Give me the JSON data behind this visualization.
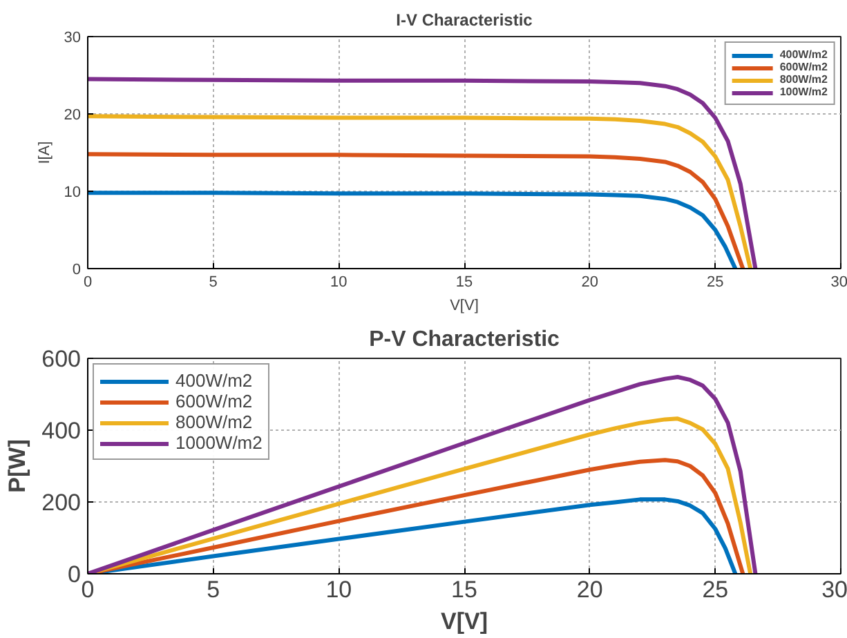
{
  "chart_data": [
    {
      "type": "line",
      "title": "I-V Characteristic",
      "xlabel": "V[V]",
      "ylabel": "I[A]",
      "xlim": [
        0,
        30
      ],
      "ylim": [
        0,
        30
      ],
      "xticks": [
        0,
        5,
        10,
        15,
        20,
        25,
        30
      ],
      "yticks": [
        0,
        10,
        20,
        30
      ],
      "grid": true,
      "legend": "top right",
      "line_style": "solid",
      "marker": "none",
      "series": [
        {
          "name": "400W/m2",
          "color": "#0072bd",
          "x": [
            0,
            5,
            10,
            15,
            20,
            21,
            22,
            23,
            23.5,
            24,
            24.5,
            25,
            25.4,
            25.8
          ],
          "values": [
            9.8,
            9.8,
            9.7,
            9.7,
            9.6,
            9.5,
            9.4,
            9.0,
            8.6,
            7.9,
            6.9,
            5.0,
            2.8,
            0
          ]
        },
        {
          "name": "600W/m2",
          "color": "#d95319",
          "x": [
            0,
            5,
            10,
            15,
            20,
            21,
            22,
            23,
            23.5,
            24,
            24.5,
            25,
            25.5,
            26.1
          ],
          "values": [
            14.8,
            14.7,
            14.7,
            14.6,
            14.5,
            14.4,
            14.2,
            13.8,
            13.3,
            12.5,
            11.2,
            9.0,
            5.5,
            0
          ]
        },
        {
          "name": "800W/m2",
          "color": "#edb120",
          "x": [
            0,
            5,
            10,
            15,
            20,
            21,
            22,
            23,
            23.5,
            24,
            24.5,
            25,
            25.5,
            26,
            26.4
          ],
          "values": [
            19.7,
            19.6,
            19.5,
            19.5,
            19.4,
            19.3,
            19.1,
            18.7,
            18.3,
            17.5,
            16.4,
            14.5,
            11.5,
            5.5,
            0
          ]
        },
        {
          "name": "100W/m2",
          "color": "#7e2f8e",
          "x": [
            0,
            5,
            10,
            15,
            20,
            21,
            22,
            23,
            23.5,
            24,
            24.5,
            25,
            25.5,
            26,
            26.6
          ],
          "values": [
            24.5,
            24.4,
            24.3,
            24.3,
            24.2,
            24.1,
            24.0,
            23.6,
            23.2,
            22.5,
            21.4,
            19.5,
            16.5,
            11,
            0
          ]
        }
      ]
    },
    {
      "type": "line",
      "title": "P-V Characteristic",
      "xlabel": "V[V]",
      "ylabel": "P[W]",
      "xlim": [
        0,
        30
      ],
      "ylim": [
        0,
        600
      ],
      "xticks": [
        0,
        5,
        10,
        15,
        20,
        25,
        30
      ],
      "yticks": [
        0,
        200,
        400,
        600
      ],
      "grid": true,
      "legend": "top left",
      "line_style": "solid",
      "marker": "none",
      "series": [
        {
          "name": "400W/m2",
          "color": "#0072bd",
          "x": [
            0,
            5,
            10,
            15,
            20,
            21,
            22,
            23,
            23.5,
            24,
            24.5,
            25,
            25.4,
            25.8
          ],
          "values": [
            0,
            49,
            97,
            145,
            192,
            199,
            207,
            207,
            202,
            190,
            169,
            125,
            71,
            0
          ]
        },
        {
          "name": "600W/m2",
          "color": "#d95319",
          "x": [
            0,
            5,
            10,
            15,
            20,
            21,
            22,
            23,
            23.5,
            24,
            24.5,
            25,
            25.5,
            26.1
          ],
          "values": [
            0,
            73,
            147,
            219,
            290,
            302,
            312,
            317,
            313,
            300,
            274,
            225,
            140,
            0
          ]
        },
        {
          "name": "800W/m2",
          "color": "#edb120",
          "x": [
            0,
            5,
            10,
            15,
            20,
            21,
            22,
            23,
            23.5,
            24,
            24.5,
            25,
            25.5,
            26,
            26.4
          ],
          "values": [
            0,
            98,
            195,
            292,
            388,
            405,
            420,
            430,
            432,
            420,
            402,
            362,
            293,
            143,
            0
          ]
        },
        {
          "name": "1000W/m2",
          "color": "#7e2f8e",
          "x": [
            0,
            5,
            10,
            15,
            20,
            21,
            22,
            23,
            23.5,
            24,
            24.5,
            25,
            25.5,
            26,
            26.6
          ],
          "values": [
            0,
            122,
            243,
            364,
            484,
            506,
            528,
            543,
            548,
            540,
            524,
            487,
            421,
            286,
            0
          ]
        }
      ]
    }
  ]
}
